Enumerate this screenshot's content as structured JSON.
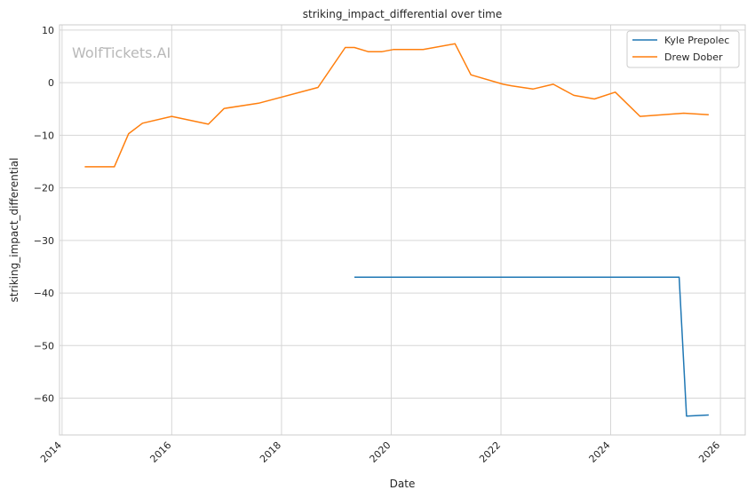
{
  "chart_data": {
    "type": "line",
    "title": "striking_impact_differential over time",
    "xlabel": "Date",
    "ylabel": "striking_impact_differential",
    "watermark": "WolfTickets.AI",
    "x_axis_type": "date",
    "xlim": [
      "2013-12-15",
      "2026-06-15"
    ],
    "ylim": [
      -67,
      11
    ],
    "x_ticks": [
      "2014",
      "2016",
      "2018",
      "2020",
      "2022",
      "2024",
      "2026"
    ],
    "y_ticks": [
      10,
      0,
      -10,
      -20,
      -30,
      -40,
      -50,
      -60
    ],
    "grid": true,
    "legend_position": "top-right",
    "series": [
      {
        "name": "Kyle Prepolec",
        "color": "#1f77b4",
        "points": [
          [
            "2019-05-01",
            -37.0
          ],
          [
            "2025-04-01",
            -37.0
          ],
          [
            "2025-05-20",
            -63.4
          ],
          [
            "2025-10-15",
            -63.2
          ]
        ]
      },
      {
        "name": "Drew Dober",
        "color": "#ff7f0e",
        "points": [
          [
            "2014-06-01",
            -16.0
          ],
          [
            "2014-12-15",
            -16.0
          ],
          [
            "2015-03-20",
            -9.7
          ],
          [
            "2015-06-20",
            -7.7
          ],
          [
            "2016-01-01",
            -6.4
          ],
          [
            "2016-09-01",
            -7.9
          ],
          [
            "2016-12-15",
            -4.9
          ],
          [
            "2017-08-01",
            -3.9
          ],
          [
            "2018-09-01",
            -0.9
          ],
          [
            "2019-03-01",
            6.7
          ],
          [
            "2019-05-01",
            6.7
          ],
          [
            "2019-08-01",
            5.9
          ],
          [
            "2019-11-01",
            5.9
          ],
          [
            "2020-01-15",
            6.3
          ],
          [
            "2020-08-01",
            6.3
          ],
          [
            "2021-03-01",
            7.4
          ],
          [
            "2021-06-15",
            1.5
          ],
          [
            "2022-01-15",
            -0.3
          ],
          [
            "2022-03-15",
            -0.6
          ],
          [
            "2022-08-01",
            -1.2
          ],
          [
            "2022-12-15",
            -0.3
          ],
          [
            "2023-05-01",
            -2.4
          ],
          [
            "2023-09-15",
            -3.1
          ],
          [
            "2024-02-01",
            -1.8
          ],
          [
            "2024-07-15",
            -6.4
          ],
          [
            "2025-05-01",
            -5.8
          ],
          [
            "2025-10-15",
            -6.1
          ]
        ]
      }
    ]
  }
}
